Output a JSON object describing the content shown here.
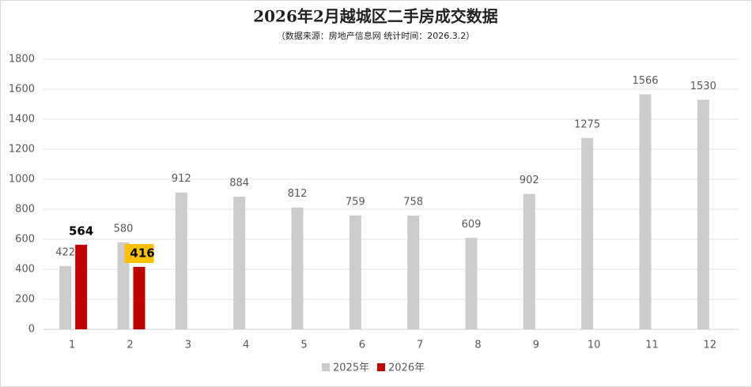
{
  "chart_data": {
    "type": "bar",
    "title": "2026年2月越城区二手房成交数据",
    "subtitle": "（数据来源：房地产信息网  统计时间：2026.3.2）",
    "categories": [
      "1",
      "2",
      "3",
      "4",
      "5",
      "6",
      "7",
      "8",
      "9",
      "10",
      "11",
      "12"
    ],
    "series": [
      {
        "name": "2025年",
        "color": "#cccccc",
        "values": [
          422,
          580,
          912,
          884,
          812,
          759,
          758,
          609,
          902,
          1275,
          1566,
          1530
        ]
      },
      {
        "name": "2026年",
        "color": "#c00000",
        "values": [
          564,
          416,
          null,
          null,
          null,
          null,
          null,
          null,
          null,
          null,
          null,
          null
        ]
      }
    ],
    "ylim": [
      0,
      1800
    ],
    "yticks": [
      0,
      200,
      400,
      600,
      800,
      1000,
      1200,
      1400,
      1600,
      1800
    ],
    "grid": true,
    "legend": "bottom"
  }
}
